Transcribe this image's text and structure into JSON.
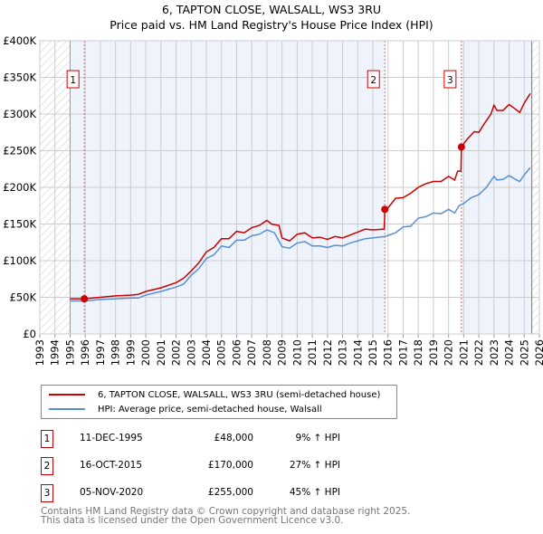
{
  "chart_data": {
    "type": "line",
    "title": "6, TAPTON CLOSE, WALSALL, WS3 3RU",
    "subtitle": "Price paid vs. HM Land Registry's House Price Index (HPI)",
    "xlim": [
      1993,
      2026
    ],
    "ylim": [
      0,
      400000
    ],
    "x_ticks": [
      "1993",
      "1994",
      "1995",
      "1996",
      "1997",
      "1998",
      "1999",
      "2000",
      "2001",
      "2002",
      "2003",
      "2004",
      "2005",
      "2006",
      "2007",
      "2008",
      "2009",
      "2010",
      "2011",
      "2012",
      "2013",
      "2014",
      "2015",
      "2016",
      "2017",
      "2018",
      "2019",
      "2020",
      "2021",
      "2022",
      "2023",
      "2024",
      "2025",
      "2026"
    ],
    "y_ticks": [
      {
        "v": 0,
        "label": "£0"
      },
      {
        "v": 50000,
        "label": "£50K"
      },
      {
        "v": 100000,
        "label": "£100K"
      },
      {
        "v": 150000,
        "label": "£150K"
      },
      {
        "v": 200000,
        "label": "£200K"
      },
      {
        "v": 250000,
        "label": "£250K"
      },
      {
        "v": 300000,
        "label": "£300K"
      },
      {
        "v": 350000,
        "label": "£350K"
      },
      {
        "v": 400000,
        "label": "£400K"
      }
    ],
    "grid": true,
    "data_range": [
      1995,
      2025.5
    ],
    "series": [
      {
        "name": "6, TAPTON CLOSE, WALSALL, WS3 3RU (semi-detached house)",
        "color": "#cc0000",
        "x": [
          1995,
          1995.94,
          1997,
          1998,
          1999,
          1999.5,
          2000,
          2001,
          2002,
          2002.5,
          2003,
          2003.5,
          2004,
          2004.5,
          2005,
          2005.5,
          2006,
          2006.5,
          2007,
          2007.5,
          2008,
          2008.3,
          2008.8,
          2009,
          2009.5,
          2010,
          2010.5,
          2011,
          2011.5,
          2012,
          2012.5,
          2013,
          2013.5,
          2014,
          2014.5,
          2015,
          2015.75,
          2015.79,
          2016,
          2016.5,
          2017,
          2017.5,
          2018,
          2018.5,
          2019,
          2019.5,
          2020,
          2020.4,
          2020.6,
          2020.82,
          2020.85,
          2021.2,
          2021.7,
          2022,
          2022.3,
          2022.8,
          2023,
          2023.2,
          2023.6,
          2024,
          2024.4,
          2024.7,
          2025,
          2025.4
        ],
        "y": [
          48000,
          48000,
          50000,
          52000,
          53000,
          54000,
          58000,
          63000,
          70000,
          76000,
          86000,
          97000,
          112000,
          118000,
          130000,
          130000,
          140000,
          138000,
          145000,
          148000,
          155000,
          150000,
          148000,
          131000,
          127000,
          136000,
          138000,
          131000,
          132000,
          129000,
          133000,
          131000,
          135000,
          139000,
          143000,
          142000,
          143000,
          170000,
          172000,
          185000,
          186000,
          192000,
          200000,
          205000,
          208000,
          208000,
          215000,
          210000,
          222000,
          222000,
          255000,
          265000,
          276000,
          275000,
          285000,
          300000,
          312000,
          305000,
          305000,
          313000,
          307000,
          302000,
          315000,
          328000
        ]
      },
      {
        "name": "HPI: Average price, semi-detached house, Walsall",
        "color": "#5b8fd4",
        "x": [
          1995,
          1996,
          1997,
          1998,
          1999,
          1999.5,
          2000,
          2001,
          2002,
          2002.5,
          2003,
          2003.5,
          2004,
          2004.5,
          2005,
          2005.5,
          2006,
          2006.5,
          2007,
          2007.5,
          2008,
          2008.5,
          2009,
          2009.5,
          2010,
          2010.5,
          2011,
          2011.5,
          2012,
          2012.5,
          2013,
          2013.5,
          2014,
          2014.5,
          2015,
          2015.8,
          2016.5,
          2017,
          2017.5,
          2018,
          2018.5,
          2019,
          2019.5,
          2020,
          2020.4,
          2020.7,
          2021,
          2021.5,
          2022,
          2022.5,
          2023,
          2023.2,
          2023.6,
          2024,
          2024.5,
          2024.7,
          2025,
          2025.4
        ],
        "y": [
          45000,
          45000,
          47000,
          48000,
          49000,
          49000,
          53000,
          58000,
          64000,
          68000,
          80000,
          89000,
          103000,
          108000,
          120000,
          118000,
          128000,
          128000,
          134000,
          136000,
          142000,
          138000,
          119000,
          117000,
          124000,
          126000,
          120000,
          120000,
          118000,
          121000,
          120000,
          124000,
          127000,
          130000,
          131000,
          133000,
          138000,
          146000,
          147000,
          158000,
          160000,
          165000,
          164000,
          170000,
          165000,
          175000,
          178000,
          186000,
          190000,
          200000,
          215000,
          210000,
          211000,
          216000,
          210000,
          208000,
          217000,
          227000
        ]
      }
    ],
    "sales": [
      {
        "n": "1",
        "date": "11-DEC-1995",
        "x": 1995.94,
        "price": "£48,000",
        "value": 48000,
        "hpi": "9% ↑ HPI"
      },
      {
        "n": "2",
        "date": "16-OCT-2015",
        "x": 2015.79,
        "price": "£170,000",
        "value": 170000,
        "hpi": "27% ↑ HPI"
      },
      {
        "n": "3",
        "date": "05-NOV-2020",
        "x": 2020.85,
        "price": "£255,000",
        "value": 255000,
        "hpi": "45% ↑ HPI"
      }
    ]
  },
  "footer": {
    "line1": "Contains HM Land Registry data © Crown copyright and database right 2025.",
    "line2": "This data is licensed under the Open Government Licence v3.0."
  }
}
